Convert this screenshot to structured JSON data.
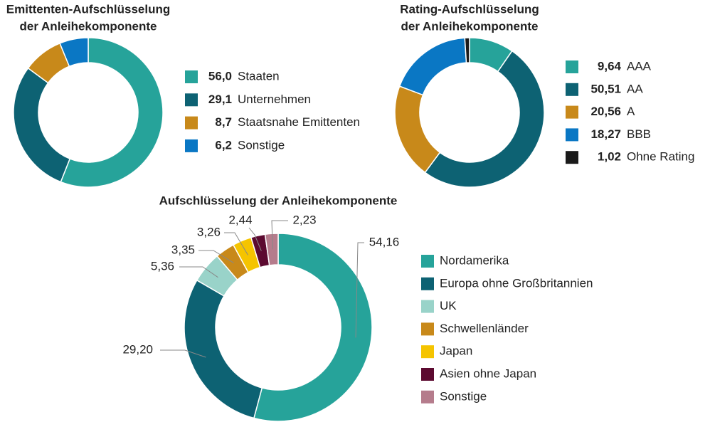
{
  "chart_data": [
    {
      "type": "donut",
      "labels": "legend",
      "title": [
        "Emittenten-Aufschlüsselung",
        "der Anleihekomponente"
      ],
      "categories": [
        "Staaten",
        "Unternehmen",
        "Staatsnahe Emittenten",
        "Sonstige"
      ],
      "values": [
        56.0,
        29.1,
        8.7,
        6.2
      ],
      "value_labels": [
        "56,0",
        "29,1",
        "8,7",
        "6,2"
      ],
      "colors": [
        "#26a39a",
        "#0d6273",
        "#c8891a",
        "#0a77c4"
      ]
    },
    {
      "type": "donut",
      "labels": "legend",
      "title": [
        "Rating-Aufschlüsselung",
        "der Anleihekomponente"
      ],
      "categories": [
        "AAA",
        "AA",
        "A",
        "BBB",
        "Ohne Rating"
      ],
      "values": [
        9.64,
        50.51,
        20.56,
        18.27,
        1.02
      ],
      "value_labels": [
        "9,64",
        "50,51",
        "20,56",
        "18,27",
        "1,02"
      ],
      "colors": [
        "#26a39a",
        "#0d6273",
        "#c8891a",
        "#0a77c4",
        "#1a1a1a"
      ]
    },
    {
      "type": "donut",
      "labels": "outside",
      "title": [
        "Aufschlüsselung der Anleihekomponente"
      ],
      "categories": [
        "Nordamerika",
        "Europa ohne Großbritannien",
        "UK",
        "Schwellenländer",
        "Japan",
        "Asien ohne Japan",
        "Sonstige"
      ],
      "values": [
        54.16,
        29.2,
        5.36,
        3.35,
        3.26,
        2.44,
        2.23
      ],
      "value_labels": [
        "54,16",
        "29,20",
        "5,36",
        "3,35",
        "3,26",
        "2,44",
        "2,23"
      ],
      "colors": [
        "#26a39a",
        "#0d6273",
        "#99d3c9",
        "#c8891a",
        "#f5c400",
        "#5c0a30",
        "#b57c8c"
      ]
    }
  ]
}
